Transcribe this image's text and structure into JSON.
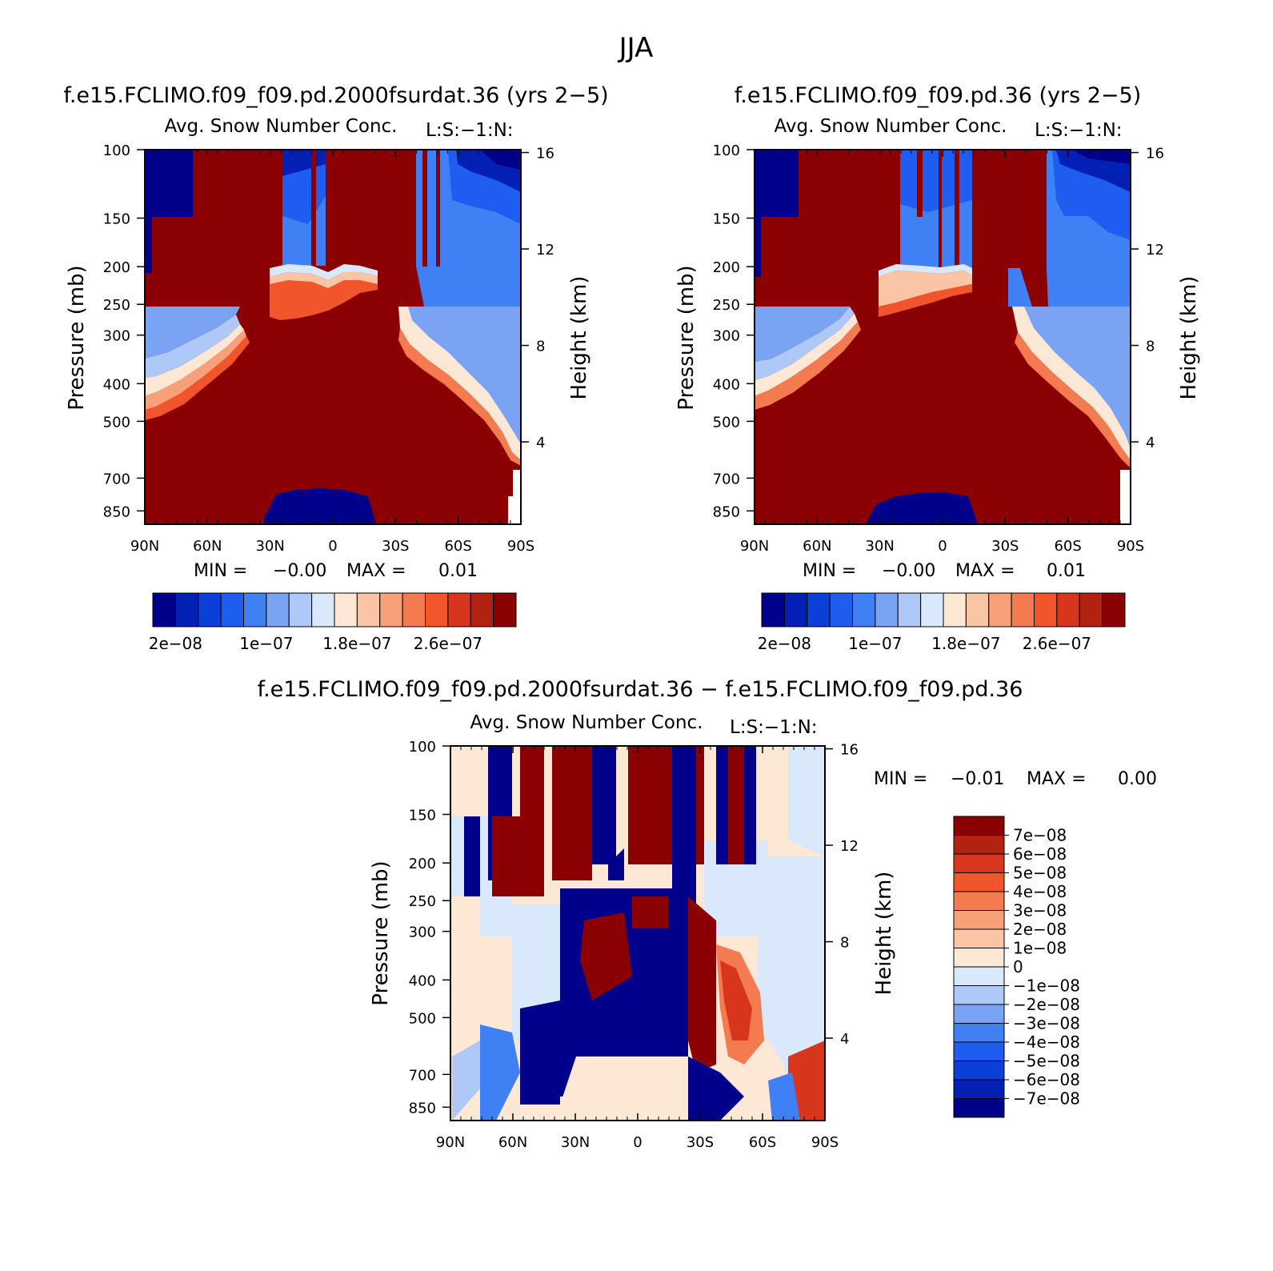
{
  "figure_title": "JJA",
  "chart_data": [
    {
      "type": "heatmap",
      "title": "f.e15.FCLIMO.f09_f09.pd.2000fsurdat.36 (yrs 2−5)",
      "subtitle": "Avg. Snow Number Conc.",
      "units": "L:S:−1:N:",
      "ylabel": "Pressure (mb)",
      "ylabel2": "Height (km)",
      "x_ticks": [
        "90N",
        "60N",
        "30N",
        "0",
        "30S",
        "60S",
        "90S"
      ],
      "x_values": [
        90,
        60,
        30,
        0,
        -30,
        -60,
        -90
      ],
      "y_ticks": [
        "100",
        "150",
        "200",
        "250",
        "300",
        "400",
        "500",
        "700",
        "850"
      ],
      "y_values": [
        100,
        150,
        200,
        250,
        300,
        400,
        500,
        700,
        850
      ],
      "ylim": [
        100,
        920
      ],
      "log_scale_y": true,
      "height_ticks": [
        "16",
        "12",
        "8",
        "4"
      ],
      "height_values": [
        16,
        12,
        8,
        4
      ],
      "min_label": "MIN =",
      "min_value": "−0.00",
      "max_label": "MAX =",
      "max_value": "0.01",
      "colorbar_labels": [
        "2e−08",
        "1e−07",
        "1.8e−07",
        "2.6e−07"
      ],
      "colorbar_colors": [
        "#00008a",
        "#0320b4",
        "#0a3fd8",
        "#1f5cf0",
        "#4080f5",
        "#7ba3f4",
        "#aec8f7",
        "#d9e8fb",
        "#fde7d5",
        "#fac5a5",
        "#f7a07a",
        "#f47a4f",
        "#f0552b",
        "#d8361c",
        "#b32210",
        "#8b0000"
      ]
    },
    {
      "type": "heatmap",
      "title": "f.e15.FCLIMO.f09_f09.pd.36 (yrs 2−5)",
      "subtitle": "Avg. Snow Number Conc.",
      "units": "L:S:−1:N:",
      "ylabel": "Pressure (mb)",
      "ylabel2": "Height (km)",
      "x_ticks": [
        "90N",
        "60N",
        "30N",
        "0",
        "30S",
        "60S",
        "90S"
      ],
      "x_values": [
        90,
        60,
        30,
        0,
        -30,
        -60,
        -90
      ],
      "y_ticks": [
        "100",
        "150",
        "200",
        "250",
        "300",
        "400",
        "500",
        "700",
        "850"
      ],
      "y_values": [
        100,
        150,
        200,
        250,
        300,
        400,
        500,
        700,
        850
      ],
      "ylim": [
        100,
        920
      ],
      "log_scale_y": true,
      "height_ticks": [
        "16",
        "12",
        "8",
        "4"
      ],
      "height_values": [
        16,
        12,
        8,
        4
      ],
      "min_label": "MIN =",
      "min_value": "−0.00",
      "max_label": "MAX =",
      "max_value": "0.01",
      "colorbar_labels": [
        "2e−08",
        "1e−07",
        "1.8e−07",
        "2.6e−07"
      ],
      "colorbar_colors": [
        "#00008a",
        "#0320b4",
        "#0a3fd8",
        "#1f5cf0",
        "#4080f5",
        "#7ba3f4",
        "#aec8f7",
        "#d9e8fb",
        "#fde7d5",
        "#fac5a5",
        "#f7a07a",
        "#f47a4f",
        "#f0552b",
        "#d8361c",
        "#b32210",
        "#8b0000"
      ]
    },
    {
      "type": "heatmap",
      "title": "f.e15.FCLIMO.f09_f09.pd.2000fsurdat.36 − f.e15.FCLIMO.f09_f09.pd.36",
      "subtitle": "Avg. Snow Number Conc.",
      "units": "L:S:−1:N:",
      "ylabel": "Pressure (mb)",
      "ylabel2": "Height (km)",
      "x_ticks": [
        "90N",
        "60N",
        "30N",
        "0",
        "30S",
        "60S",
        "90S"
      ],
      "x_values": [
        90,
        60,
        30,
        0,
        -30,
        -60,
        -90
      ],
      "y_ticks": [
        "100",
        "150",
        "200",
        "250",
        "300",
        "400",
        "500",
        "700",
        "850"
      ],
      "y_values": [
        100,
        150,
        200,
        250,
        300,
        400,
        500,
        700,
        850
      ],
      "ylim": [
        100,
        920
      ],
      "log_scale_y": true,
      "height_ticks": [
        "16",
        "12",
        "8",
        "4"
      ],
      "height_values": [
        16,
        12,
        8,
        4
      ],
      "min_label": "MIN =",
      "min_value": "−0.01",
      "max_label": "MAX =",
      "max_value": "0.00",
      "colorbar_labels": [
        "7e−08",
        "6e−08",
        "5e−08",
        "4e−08",
        "3e−08",
        "2e−08",
        "1e−08",
        "0",
        "−1e−08",
        "−2e−08",
        "−3e−08",
        "−4e−08",
        "−5e−08",
        "−6e−08",
        "−7e−08"
      ],
      "colorbar_colors": [
        "#8b0000",
        "#b32210",
        "#d8361c",
        "#f0552b",
        "#f47a4f",
        "#f7a07a",
        "#fac5a5",
        "#fde7d5",
        "#d9e8fb",
        "#aec8f7",
        "#7ba3f4",
        "#4080f5",
        "#1f5cf0",
        "#0a3fd8",
        "#0320b4",
        "#00008a"
      ]
    }
  ]
}
